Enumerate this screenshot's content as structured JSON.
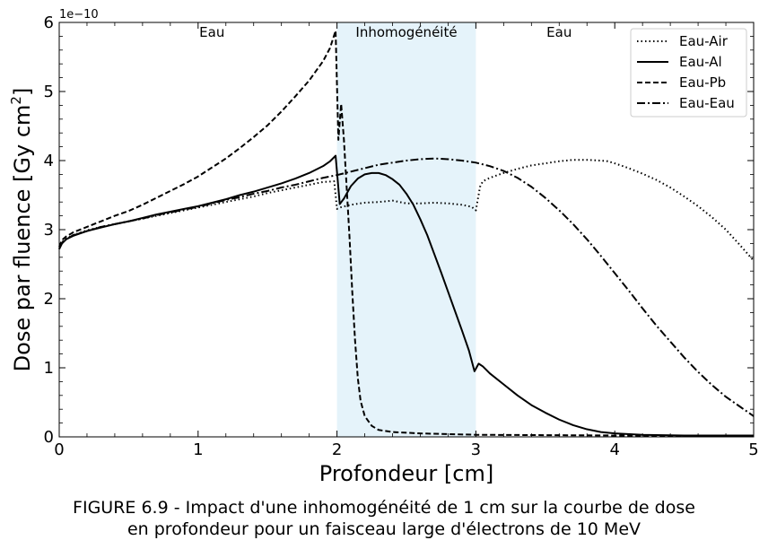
{
  "chart_data": {
    "type": "line",
    "xlabel": "Profondeur [cm]",
    "ylabel": "Dose par fluence [Gy cm²]",
    "ylabel_main": "Dose par fluence [Gy cm",
    "ylabel_sup": "2",
    "ylabel_end": "]",
    "y_offset_label": "1e−10",
    "xlim": [
      0,
      5
    ],
    "ylim": [
      0,
      6
    ],
    "x_ticks": [
      "0",
      "1",
      "2",
      "3",
      "4",
      "5"
    ],
    "y_ticks": [
      "0",
      "1",
      "2",
      "3",
      "4",
      "5",
      "6"
    ],
    "grid": false,
    "legend_position": "top-right",
    "shaded_region": {
      "x_start": 2,
      "x_end": 3,
      "color": "#e5f3fa"
    },
    "region_labels": [
      {
        "text": "Eau",
        "x": 1.1
      },
      {
        "text": "Inhomogénéité",
        "x": 2.5
      },
      {
        "text": "Eau",
        "x": 3.6
      }
    ],
    "series": [
      {
        "name": "Eau-Air",
        "style": "dotted",
        "points": [
          [
            0.0,
            2.72
          ],
          [
            0.02,
            2.82
          ],
          [
            0.05,
            2.87
          ],
          [
            0.1,
            2.92
          ],
          [
            0.2,
            2.99
          ],
          [
            0.3,
            3.04
          ],
          [
            0.4,
            3.08
          ],
          [
            0.5,
            3.12
          ],
          [
            0.6,
            3.16
          ],
          [
            0.7,
            3.2
          ],
          [
            0.8,
            3.24
          ],
          [
            0.9,
            3.28
          ],
          [
            1.0,
            3.32
          ],
          [
            1.1,
            3.36
          ],
          [
            1.2,
            3.4
          ],
          [
            1.3,
            3.44
          ],
          [
            1.4,
            3.48
          ],
          [
            1.5,
            3.53
          ],
          [
            1.6,
            3.57
          ],
          [
            1.7,
            3.61
          ],
          [
            1.8,
            3.65
          ],
          [
            1.9,
            3.69
          ],
          [
            1.98,
            3.7
          ],
          [
            2.0,
            3.3
          ],
          [
            2.02,
            3.32
          ],
          [
            2.1,
            3.36
          ],
          [
            2.2,
            3.39
          ],
          [
            2.3,
            3.4
          ],
          [
            2.4,
            3.42
          ],
          [
            2.5,
            3.38
          ],
          [
            2.6,
            3.38
          ],
          [
            2.7,
            3.39
          ],
          [
            2.8,
            3.38
          ],
          [
            2.9,
            3.36
          ],
          [
            2.97,
            3.33
          ],
          [
            3.0,
            3.28
          ],
          [
            3.03,
            3.62
          ],
          [
            3.05,
            3.7
          ],
          [
            3.1,
            3.75
          ],
          [
            3.2,
            3.82
          ],
          [
            3.3,
            3.88
          ],
          [
            3.4,
            3.93
          ],
          [
            3.5,
            3.96
          ],
          [
            3.6,
            3.99
          ],
          [
            3.7,
            4.01
          ],
          [
            3.8,
            4.01
          ],
          [
            3.9,
            4.0
          ],
          [
            3.95,
            3.99
          ],
          [
            4.0,
            3.96
          ],
          [
            4.1,
            3.89
          ],
          [
            4.2,
            3.81
          ],
          [
            4.3,
            3.72
          ],
          [
            4.4,
            3.61
          ],
          [
            4.5,
            3.48
          ],
          [
            4.6,
            3.34
          ],
          [
            4.7,
            3.18
          ],
          [
            4.8,
            3.0
          ],
          [
            4.9,
            2.78
          ],
          [
            5.0,
            2.55
          ]
        ]
      },
      {
        "name": "Eau-Al",
        "style": "solid",
        "points": [
          [
            0.0,
            2.72
          ],
          [
            0.02,
            2.8
          ],
          [
            0.05,
            2.86
          ],
          [
            0.1,
            2.91
          ],
          [
            0.2,
            2.98
          ],
          [
            0.3,
            3.03
          ],
          [
            0.4,
            3.08
          ],
          [
            0.5,
            3.12
          ],
          [
            0.6,
            3.17
          ],
          [
            0.7,
            3.22
          ],
          [
            0.8,
            3.26
          ],
          [
            0.9,
            3.3
          ],
          [
            1.0,
            3.34
          ],
          [
            1.1,
            3.39
          ],
          [
            1.2,
            3.44
          ],
          [
            1.3,
            3.5
          ],
          [
            1.4,
            3.55
          ],
          [
            1.5,
            3.61
          ],
          [
            1.6,
            3.67
          ],
          [
            1.7,
            3.74
          ],
          [
            1.8,
            3.82
          ],
          [
            1.9,
            3.92
          ],
          [
            1.95,
            3.99
          ],
          [
            1.99,
            4.07
          ],
          [
            2.02,
            3.37
          ],
          [
            2.05,
            3.45
          ],
          [
            2.1,
            3.63
          ],
          [
            2.15,
            3.74
          ],
          [
            2.2,
            3.8
          ],
          [
            2.25,
            3.82
          ],
          [
            2.3,
            3.82
          ],
          [
            2.35,
            3.79
          ],
          [
            2.4,
            3.73
          ],
          [
            2.45,
            3.65
          ],
          [
            2.5,
            3.52
          ],
          [
            2.55,
            3.36
          ],
          [
            2.6,
            3.15
          ],
          [
            2.65,
            2.92
          ],
          [
            2.7,
            2.65
          ],
          [
            2.75,
            2.38
          ],
          [
            2.8,
            2.1
          ],
          [
            2.85,
            1.82
          ],
          [
            2.9,
            1.54
          ],
          [
            2.95,
            1.25
          ],
          [
            2.99,
            0.95
          ],
          [
            3.02,
            1.06
          ],
          [
            3.05,
            1.02
          ],
          [
            3.1,
            0.92
          ],
          [
            3.2,
            0.76
          ],
          [
            3.3,
            0.6
          ],
          [
            3.4,
            0.46
          ],
          [
            3.5,
            0.35
          ],
          [
            3.6,
            0.25
          ],
          [
            3.7,
            0.17
          ],
          [
            3.8,
            0.11
          ],
          [
            3.9,
            0.07
          ],
          [
            4.0,
            0.05
          ],
          [
            4.2,
            0.03
          ],
          [
            4.5,
            0.02
          ],
          [
            5.0,
            0.02
          ]
        ]
      },
      {
        "name": "Eau-Pb",
        "style": "dashed",
        "points": [
          [
            0.0,
            2.75
          ],
          [
            0.02,
            2.85
          ],
          [
            0.05,
            2.9
          ],
          [
            0.1,
            2.96
          ],
          [
            0.2,
            3.04
          ],
          [
            0.3,
            3.12
          ],
          [
            0.4,
            3.2
          ],
          [
            0.5,
            3.27
          ],
          [
            0.6,
            3.36
          ],
          [
            0.7,
            3.46
          ],
          [
            0.8,
            3.56
          ],
          [
            0.9,
            3.66
          ],
          [
            1.0,
            3.77
          ],
          [
            1.1,
            3.9
          ],
          [
            1.2,
            4.03
          ],
          [
            1.3,
            4.18
          ],
          [
            1.4,
            4.34
          ],
          [
            1.5,
            4.51
          ],
          [
            1.6,
            4.71
          ],
          [
            1.7,
            4.93
          ],
          [
            1.8,
            5.16
          ],
          [
            1.9,
            5.44
          ],
          [
            1.95,
            5.63
          ],
          [
            1.99,
            5.88
          ],
          [
            2.01,
            4.3
          ],
          [
            2.03,
            4.82
          ],
          [
            2.05,
            4.3
          ],
          [
            2.07,
            3.6
          ],
          [
            2.09,
            2.9
          ],
          [
            2.11,
            2.1
          ],
          [
            2.13,
            1.4
          ],
          [
            2.15,
            0.85
          ],
          [
            2.17,
            0.52
          ],
          [
            2.2,
            0.3
          ],
          [
            2.25,
            0.16
          ],
          [
            2.3,
            0.1
          ],
          [
            2.4,
            0.07
          ],
          [
            2.6,
            0.05
          ],
          [
            3.0,
            0.03
          ],
          [
            4.0,
            0.02
          ],
          [
            5.0,
            0.02
          ]
        ]
      },
      {
        "name": "Eau-Eau",
        "style": "dashdot",
        "points": [
          [
            0.0,
            2.72
          ],
          [
            0.02,
            2.81
          ],
          [
            0.05,
            2.86
          ],
          [
            0.1,
            2.92
          ],
          [
            0.2,
            2.98
          ],
          [
            0.3,
            3.04
          ],
          [
            0.4,
            3.08
          ],
          [
            0.5,
            3.12
          ],
          [
            0.6,
            3.16
          ],
          [
            0.7,
            3.21
          ],
          [
            0.8,
            3.25
          ],
          [
            0.9,
            3.29
          ],
          [
            1.0,
            3.33
          ],
          [
            1.1,
            3.38
          ],
          [
            1.2,
            3.43
          ],
          [
            1.3,
            3.47
          ],
          [
            1.4,
            3.52
          ],
          [
            1.5,
            3.56
          ],
          [
            1.6,
            3.61
          ],
          [
            1.7,
            3.65
          ],
          [
            1.8,
            3.7
          ],
          [
            1.9,
            3.75
          ],
          [
            2.0,
            3.79
          ],
          [
            2.1,
            3.84
          ],
          [
            2.2,
            3.89
          ],
          [
            2.3,
            3.94
          ],
          [
            2.4,
            3.97
          ],
          [
            2.5,
            4.0
          ],
          [
            2.6,
            4.02
          ],
          [
            2.7,
            4.03
          ],
          [
            2.8,
            4.02
          ],
          [
            2.9,
            4.0
          ],
          [
            3.0,
            3.97
          ],
          [
            3.1,
            3.92
          ],
          [
            3.2,
            3.85
          ],
          [
            3.3,
            3.75
          ],
          [
            3.4,
            3.62
          ],
          [
            3.5,
            3.46
          ],
          [
            3.6,
            3.28
          ],
          [
            3.7,
            3.08
          ],
          [
            3.8,
            2.86
          ],
          [
            3.9,
            2.62
          ],
          [
            4.0,
            2.37
          ],
          [
            4.1,
            2.12
          ],
          [
            4.2,
            1.86
          ],
          [
            4.3,
            1.61
          ],
          [
            4.4,
            1.38
          ],
          [
            4.5,
            1.15
          ],
          [
            4.6,
            0.94
          ],
          [
            4.7,
            0.75
          ],
          [
            4.8,
            0.58
          ],
          [
            4.9,
            0.44
          ],
          [
            5.0,
            0.3
          ]
        ]
      }
    ]
  },
  "caption": {
    "line1": "FIGURE 6.9 - Impact d'une inhomogénéité de 1 cm sur la courbe de dose",
    "line2": "en profondeur pour un faisceau large d'électrons de 10 MeV"
  }
}
